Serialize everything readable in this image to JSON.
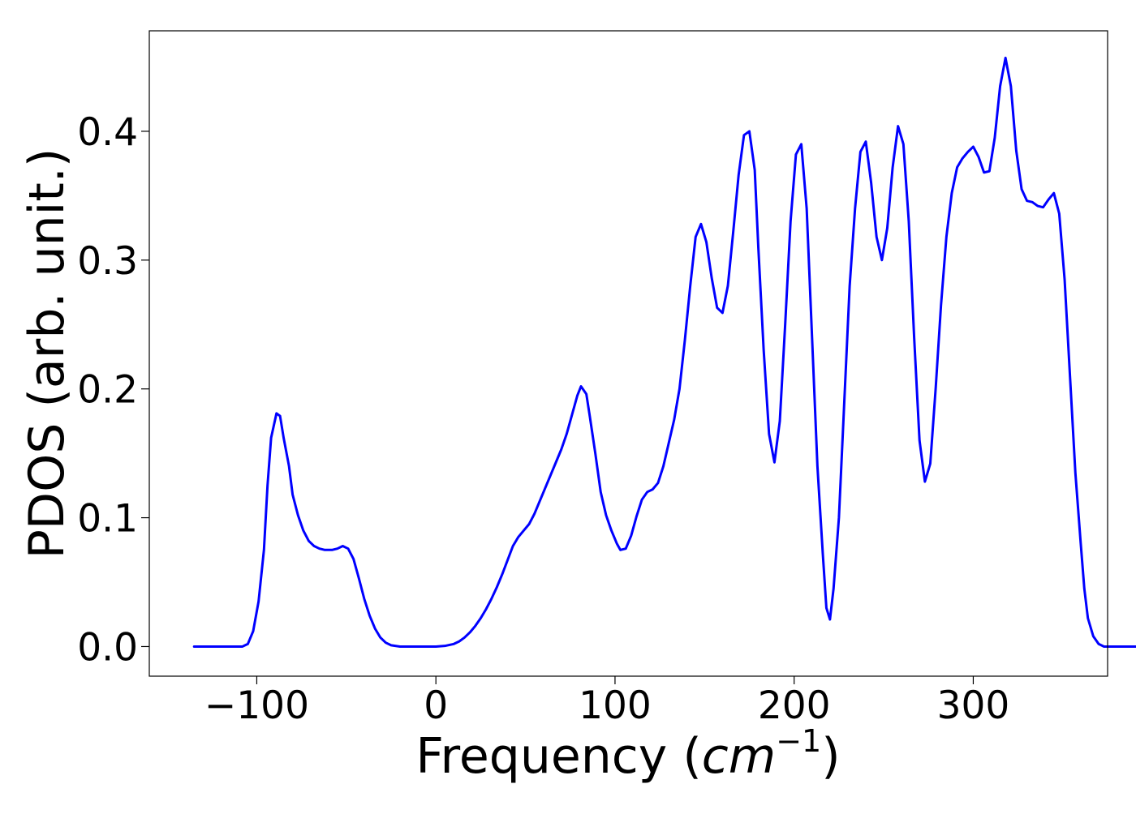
{
  "chart_data": {
    "type": "line",
    "title": "",
    "xlabel_text": "Frequency (",
    "xlabel_math_base": "cm",
    "xlabel_math_exp": "−1",
    "xlabel_text_end": ")",
    "ylabel": "PDOS (arb. unit.)",
    "xlim": [
      -160,
      375
    ],
    "ylim": [
      -0.023,
      0.478
    ],
    "x_ticks": [
      -100,
      0,
      100,
      200,
      300
    ],
    "x_tick_labels": [
      "−100",
      "0",
      "100",
      "200",
      "300"
    ],
    "y_ticks": [
      0.0,
      0.1,
      0.2,
      0.3,
      0.4
    ],
    "y_tick_labels": [
      "0.0",
      "0.1",
      "0.2",
      "0.3",
      "0.4"
    ],
    "grid": false,
    "series": [
      {
        "color": "#0000ff",
        "points": [
          [
            -135,
            0.0
          ],
          [
            -120,
            0.0
          ],
          [
            -108,
            0.0
          ],
          [
            -105,
            0.002
          ],
          [
            -102,
            0.012
          ],
          [
            -99,
            0.035
          ],
          [
            -96,
            0.075
          ],
          [
            -94,
            0.125
          ],
          [
            -92,
            0.162
          ],
          [
            -89,
            0.181
          ],
          [
            -87,
            0.179
          ],
          [
            -85,
            0.162
          ],
          [
            -82,
            0.14
          ],
          [
            -80,
            0.118
          ],
          [
            -77,
            0.102
          ],
          [
            -74,
            0.09
          ],
          [
            -71,
            0.082
          ],
          [
            -68,
            0.078
          ],
          [
            -65,
            0.076
          ],
          [
            -62,
            0.075
          ],
          [
            -58,
            0.075
          ],
          [
            -55,
            0.076
          ],
          [
            -52,
            0.078
          ],
          [
            -49,
            0.076
          ],
          [
            -46,
            0.068
          ],
          [
            -43,
            0.053
          ],
          [
            -40,
            0.037
          ],
          [
            -37,
            0.024
          ],
          [
            -34,
            0.014
          ],
          [
            -31,
            0.007
          ],
          [
            -28,
            0.003
          ],
          [
            -25,
            0.001
          ],
          [
            -20,
            0.0
          ],
          [
            -10,
            0.0
          ],
          [
            0,
            0.0
          ],
          [
            5,
            0.0005
          ],
          [
            10,
            0.002
          ],
          [
            13,
            0.004
          ],
          [
            16,
            0.007
          ],
          [
            19,
            0.011
          ],
          [
            22,
            0.016
          ],
          [
            25,
            0.022
          ],
          [
            28,
            0.029
          ],
          [
            31,
            0.037
          ],
          [
            34,
            0.046
          ],
          [
            37,
            0.056
          ],
          [
            40,
            0.067
          ],
          [
            43,
            0.078
          ],
          [
            46,
            0.085
          ],
          [
            49,
            0.09
          ],
          [
            52,
            0.095
          ],
          [
            55,
            0.103
          ],
          [
            58,
            0.113
          ],
          [
            61,
            0.123
          ],
          [
            64,
            0.133
          ],
          [
            67,
            0.143
          ],
          [
            70,
            0.153
          ],
          [
            73,
            0.165
          ],
          [
            76,
            0.18
          ],
          [
            79,
            0.195
          ],
          [
            81,
            0.202
          ],
          [
            84,
            0.196
          ],
          [
            86,
            0.178
          ],
          [
            89,
            0.15
          ],
          [
            92,
            0.12
          ],
          [
            95,
            0.102
          ],
          [
            98,
            0.09
          ],
          [
            101,
            0.08
          ],
          [
            103,
            0.075
          ],
          [
            106,
            0.076
          ],
          [
            109,
            0.086
          ],
          [
            112,
            0.101
          ],
          [
            115,
            0.114
          ],
          [
            118,
            0.12
          ],
          [
            121,
            0.122
          ],
          [
            124,
            0.127
          ],
          [
            127,
            0.14
          ],
          [
            130,
            0.158
          ],
          [
            133,
            0.176
          ],
          [
            136,
            0.2
          ],
          [
            139,
            0.238
          ],
          [
            142,
            0.28
          ],
          [
            145,
            0.318
          ],
          [
            148,
            0.328
          ],
          [
            151,
            0.314
          ],
          [
            154,
            0.286
          ],
          [
            157,
            0.263
          ],
          [
            160,
            0.259
          ],
          [
            163,
            0.28
          ],
          [
            166,
            0.322
          ],
          [
            169,
            0.366
          ],
          [
            172,
            0.397
          ],
          [
            175,
            0.4
          ],
          [
            178,
            0.37
          ],
          [
            180,
            0.31
          ],
          [
            183,
            0.23
          ],
          [
            186,
            0.165
          ],
          [
            189,
            0.143
          ],
          [
            192,
            0.175
          ],
          [
            195,
            0.25
          ],
          [
            198,
            0.33
          ],
          [
            201,
            0.382
          ],
          [
            204,
            0.39
          ],
          [
            207,
            0.34
          ],
          [
            210,
            0.24
          ],
          [
            213,
            0.14
          ],
          [
            216,
            0.072
          ],
          [
            218,
            0.03
          ],
          [
            220,
            0.021
          ],
          [
            222,
            0.045
          ],
          [
            225,
            0.1
          ],
          [
            228,
            0.19
          ],
          [
            231,
            0.28
          ],
          [
            234,
            0.34
          ],
          [
            237,
            0.384
          ],
          [
            240,
            0.392
          ],
          [
            243,
            0.36
          ],
          [
            246,
            0.318
          ],
          [
            249,
            0.3
          ],
          [
            252,
            0.325
          ],
          [
            255,
            0.372
          ],
          [
            258,
            0.404
          ],
          [
            261,
            0.39
          ],
          [
            264,
            0.33
          ],
          [
            267,
            0.24
          ],
          [
            270,
            0.16
          ],
          [
            273,
            0.128
          ],
          [
            276,
            0.142
          ],
          [
            279,
            0.2
          ],
          [
            282,
            0.265
          ],
          [
            285,
            0.318
          ],
          [
            288,
            0.352
          ],
          [
            291,
            0.372
          ],
          [
            294,
            0.379
          ],
          [
            297,
            0.384
          ],
          [
            300,
            0.388
          ],
          [
            303,
            0.38
          ],
          [
            306,
            0.368
          ],
          [
            309,
            0.369
          ],
          [
            312,
            0.395
          ],
          [
            315,
            0.435
          ],
          [
            318,
            0.457
          ],
          [
            321,
            0.435
          ],
          [
            324,
            0.385
          ],
          [
            327,
            0.355
          ],
          [
            330,
            0.346
          ],
          [
            333,
            0.345
          ],
          [
            336,
            0.342
          ],
          [
            339,
            0.341
          ],
          [
            342,
            0.347
          ],
          [
            345,
            0.352
          ],
          [
            348,
            0.336
          ],
          [
            351,
            0.285
          ],
          [
            354,
            0.21
          ],
          [
            357,
            0.135
          ],
          [
            360,
            0.08
          ],
          [
            362,
            0.045
          ],
          [
            364,
            0.022
          ],
          [
            367,
            0.008
          ],
          [
            370,
            0.002
          ],
          [
            373,
            0.0
          ],
          [
            380,
            0.0
          ],
          [
            400,
            0.0
          ],
          [
            420,
            0.0
          ],
          [
            432,
            0.0
          ]
        ]
      }
    ]
  }
}
